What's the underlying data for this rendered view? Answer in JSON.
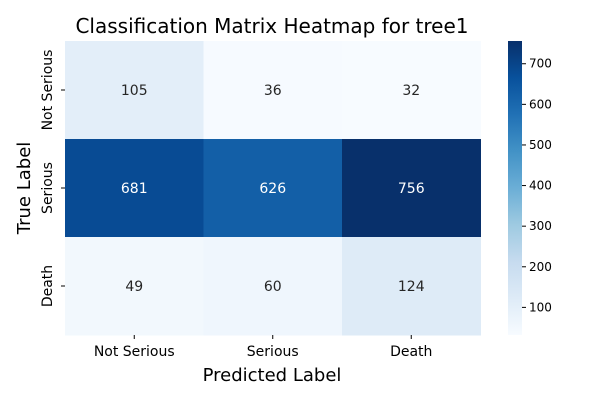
{
  "chart_data": {
    "type": "heatmap",
    "title": "Classification Matrix Heatmap for tree1",
    "xlabel": "Predicted Label",
    "ylabel": "True Label",
    "x_categories": [
      "Not Serious",
      "Serious",
      "Death"
    ],
    "y_categories": [
      "Not Serious",
      "Serious",
      "Death"
    ],
    "values": [
      [
        105,
        36,
        32
      ],
      [
        681,
        626,
        756
      ],
      [
        49,
        60,
        124
      ]
    ],
    "colorbar": {
      "cmap": "Blues",
      "range": [
        32,
        756
      ],
      "ticks": [
        100,
        200,
        300,
        400,
        500,
        600,
        700
      ]
    }
  }
}
